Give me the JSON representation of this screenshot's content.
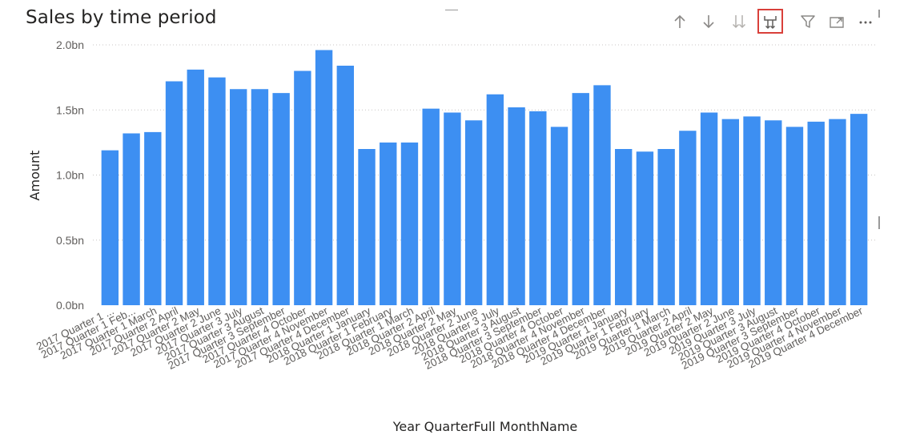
{
  "visual": {
    "title": "Sales by time period"
  },
  "toolbar": {
    "buttons": [
      {
        "name": "drill-up-icon",
        "active": false
      },
      {
        "name": "drill-down-icon",
        "active": false
      },
      {
        "name": "go-to-next-level-icon",
        "active": false
      },
      {
        "name": "expand-all-down-icon",
        "active": true
      },
      {
        "name": "filter-icon",
        "active": false
      },
      {
        "name": "focus-mode-icon",
        "active": false
      },
      {
        "name": "more-options-icon",
        "active": false
      }
    ],
    "colors": {
      "icon": "#8a8886",
      "active_border": "#d9403a"
    }
  },
  "chart_data": {
    "type": "bar",
    "title": "Sales by time period",
    "xlabel": "Year QuarterFull MonthName",
    "ylabel": "Amount",
    "ylim": [
      0,
      2.0
    ],
    "y_unit": "bn",
    "yticks": [
      "0.0bn",
      "0.5bn",
      "1.0bn",
      "1.5bn",
      "2.0bn"
    ],
    "ytick_values": [
      0,
      0.5,
      1.0,
      1.5,
      2.0
    ],
    "grid": true,
    "bar_color": "#3d8ff2",
    "categories": [
      "2017 Quarter 1 ...",
      "2017 Quarter 1 Feb...",
      "2017 Quarter 1 March",
      "2017 Quarter 2 April",
      "2017 Quarter 2 May",
      "2017 Quarter 2 June",
      "2017 Quarter 3 July",
      "2017 Quarter 3 August",
      "2017 Quarter 3 September",
      "2017 Quarter 4 October",
      "2017 Quarter 4 November",
      "2017 Quarter 4 December",
      "2018 Quarter 1 January",
      "2018 Quarter 1 February",
      "2018 Quarter 1 March",
      "2018 Quarter 2 April",
      "2018 Quarter 2 May",
      "2018 Quarter 2 June",
      "2018 Quarter 3 July",
      "2018 Quarter 3 August",
      "2018 Quarter 3 September",
      "2018 Quarter 4 October",
      "2018 Quarter 4 November",
      "2018 Quarter 4 December",
      "2019 Quarter 1 January",
      "2019 Quarter 1 February",
      "2019 Quarter 1 March",
      "2019 Quarter 2 April",
      "2019 Quarter 2 May",
      "2019 Quarter 2 June",
      "2019 Quarter 3 July",
      "2019 Quarter 3 August",
      "2019 Quarter 3 September",
      "2019 Quarter 4 October",
      "2019 Quarter 4 November",
      "2019 Quarter 4 December"
    ],
    "values": [
      1.19,
      1.32,
      1.33,
      1.72,
      1.81,
      1.75,
      1.66,
      1.66,
      1.63,
      1.8,
      1.96,
      1.84,
      1.2,
      1.25,
      1.25,
      1.51,
      1.48,
      1.42,
      1.62,
      1.52,
      1.49,
      1.37,
      1.63,
      1.69,
      1.2,
      1.18,
      1.2,
      1.34,
      1.48,
      1.43,
      1.45,
      1.42,
      1.37,
      1.41,
      1.43,
      1.47
    ]
  }
}
